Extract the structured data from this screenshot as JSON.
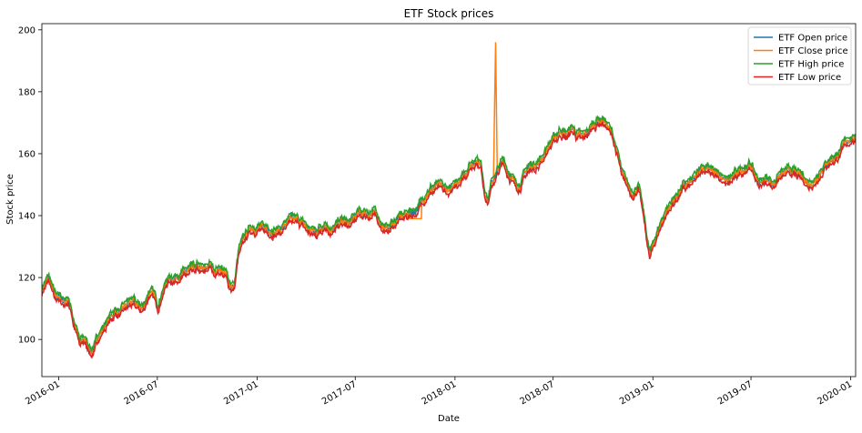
{
  "chart_data": {
    "type": "line",
    "title": "ETF Stock prices",
    "xlabel": "Date",
    "ylabel": "Stock price",
    "x_range": [
      "2015-12-01",
      "2020-01-10"
    ],
    "ylim": [
      88,
      202
    ],
    "x_ticks": [
      {
        "date": "2016-01-01",
        "label": "2016-01"
      },
      {
        "date": "2016-07-01",
        "label": "2016-07"
      },
      {
        "date": "2017-01-01",
        "label": "2017-01"
      },
      {
        "date": "2017-07-01",
        "label": "2017-07"
      },
      {
        "date": "2018-01-01",
        "label": "2018-01"
      },
      {
        "date": "2018-07-01",
        "label": "2018-07"
      },
      {
        "date": "2019-01-01",
        "label": "2019-01"
      },
      {
        "date": "2019-07-01",
        "label": "2019-07"
      },
      {
        "date": "2020-01-01",
        "label": "2020-01"
      }
    ],
    "y_ticks": [
      100,
      120,
      140,
      160,
      180,
      200
    ],
    "grid": false,
    "legend_position": "top-right",
    "series": [
      {
        "name": "ETF Open price",
        "color": "#1f77b4"
      },
      {
        "name": "ETF Close price",
        "color": "#ff7f0e"
      },
      {
        "name": "ETF High price",
        "color": "#2ca02c"
      },
      {
        "name": "ETF Low price",
        "color": "#d62728"
      }
    ],
    "base_path": [
      [
        "2015-12-01",
        116
      ],
      [
        "2015-12-08",
        118.5
      ],
      [
        "2015-12-14",
        119.5
      ],
      [
        "2015-12-21",
        116
      ],
      [
        "2015-12-28",
        112.5
      ],
      [
        "2016-01-04",
        113.5
      ],
      [
        "2016-01-11",
        111.5
      ],
      [
        "2016-01-19",
        113
      ],
      [
        "2016-01-27",
        107
      ],
      [
        "2016-02-03",
        103
      ],
      [
        "2016-02-09",
        98.5
      ],
      [
        "2016-02-17",
        100
      ],
      [
        "2016-02-24",
        98
      ],
      [
        "2016-03-01",
        96
      ],
      [
        "2016-03-07",
        97
      ],
      [
        "2016-03-15",
        101.5
      ],
      [
        "2016-03-25",
        104
      ],
      [
        "2016-04-05",
        107
      ],
      [
        "2016-04-15",
        109
      ],
      [
        "2016-04-25",
        108.5
      ],
      [
        "2016-05-05",
        111
      ],
      [
        "2016-05-15",
        112
      ],
      [
        "2016-05-25",
        110.5
      ],
      [
        "2016-06-05",
        110
      ],
      [
        "2016-06-15",
        115
      ],
      [
        "2016-06-25",
        114
      ],
      [
        "2016-07-02",
        110.5
      ],
      [
        "2016-07-10",
        115
      ],
      [
        "2016-07-20",
        119
      ],
      [
        "2016-08-01",
        120
      ],
      [
        "2016-08-15",
        121
      ],
      [
        "2016-09-01",
        122
      ],
      [
        "2016-09-15",
        123
      ],
      [
        "2016-09-25",
        122
      ],
      [
        "2016-10-05",
        124
      ],
      [
        "2016-10-15",
        122
      ],
      [
        "2016-10-25",
        123
      ],
      [
        "2016-11-05",
        120.5
      ],
      [
        "2016-11-10",
        118
      ],
      [
        "2016-11-20",
        117
      ],
      [
        "2016-11-28",
        128
      ],
      [
        "2016-12-10",
        133
      ],
      [
        "2016-12-20",
        136
      ],
      [
        "2017-01-01",
        136
      ],
      [
        "2017-01-20",
        135.5
      ],
      [
        "2017-02-10",
        135
      ],
      [
        "2017-03-01",
        138
      ],
      [
        "2017-03-20",
        138.5
      ],
      [
        "2017-04-05",
        135.5
      ],
      [
        "2017-04-20",
        134.5
      ],
      [
        "2017-05-05",
        137.5
      ],
      [
        "2017-05-20",
        135
      ],
      [
        "2017-06-05",
        138
      ],
      [
        "2017-06-20",
        137
      ],
      [
        "2017-07-05",
        140
      ],
      [
        "2017-07-20",
        141
      ],
      [
        "2017-08-05",
        140.5
      ],
      [
        "2017-08-20",
        137
      ],
      [
        "2017-08-28",
        135.5
      ],
      [
        "2017-09-10",
        137.5
      ],
      [
        "2017-09-20",
        139
      ],
      [
        "2017-10-05",
        140.5
      ],
      [
        "2017-10-20",
        141.5
      ],
      [
        "2017-11-01",
        144
      ],
      [
        "2017-11-10",
        147.5
      ],
      [
        "2017-11-20",
        148.5
      ],
      [
        "2017-12-01",
        149.5
      ],
      [
        "2017-12-15",
        148
      ],
      [
        "2017-12-28",
        148.5
      ],
      [
        "2018-01-05",
        151
      ],
      [
        "2018-01-15",
        153
      ],
      [
        "2018-01-25",
        155
      ],
      [
        "2018-02-03",
        157
      ],
      [
        "2018-02-10",
        158.5
      ],
      [
        "2018-02-18",
        156
      ],
      [
        "2018-02-25",
        148
      ],
      [
        "2018-03-03",
        145
      ],
      [
        "2018-03-10",
        150.5
      ],
      [
        "2018-03-18",
        153
      ],
      [
        "2018-03-26",
        156
      ],
      [
        "2018-04-01",
        157.5
      ],
      [
        "2018-04-08",
        154
      ],
      [
        "2018-04-15",
        152.5
      ],
      [
        "2018-04-22",
        150
      ],
      [
        "2018-04-30",
        149.5
      ],
      [
        "2018-05-08",
        152.5
      ],
      [
        "2018-05-15",
        155
      ],
      [
        "2018-05-25",
        156
      ],
      [
        "2018-06-05",
        157
      ],
      [
        "2018-06-15",
        160
      ],
      [
        "2018-06-25",
        163
      ],
      [
        "2018-07-05",
        165
      ],
      [
        "2018-07-15",
        167.5
      ],
      [
        "2018-07-25",
        166
      ],
      [
        "2018-08-05",
        168
      ],
      [
        "2018-08-15",
        166
      ],
      [
        "2018-08-25",
        165
      ],
      [
        "2018-09-01",
        166.5
      ],
      [
        "2018-09-10",
        168.5
      ],
      [
        "2018-09-20",
        170.5
      ],
      [
        "2018-10-01",
        171
      ],
      [
        "2018-10-10",
        169
      ],
      [
        "2018-10-20",
        165
      ],
      [
        "2018-10-28",
        160
      ],
      [
        "2018-11-05",
        153
      ],
      [
        "2018-11-12",
        150.5
      ],
      [
        "2018-11-20",
        148
      ],
      [
        "2018-11-28",
        147.5
      ],
      [
        "2018-12-05",
        150
      ],
      [
        "2018-12-12",
        143
      ],
      [
        "2018-12-19",
        135
      ],
      [
        "2018-12-26",
        127
      ],
      [
        "2019-01-05",
        132
      ],
      [
        "2019-01-15",
        137
      ],
      [
        "2019-01-25",
        141
      ],
      [
        "2019-02-05",
        144
      ],
      [
        "2019-02-15",
        146.5
      ],
      [
        "2019-02-25",
        149
      ],
      [
        "2019-03-08",
        150
      ],
      [
        "2019-03-18",
        151.5
      ],
      [
        "2019-03-25",
        153
      ],
      [
        "2019-04-05",
        155.5
      ],
      [
        "2019-04-15",
        156
      ],
      [
        "2019-04-25",
        153.5
      ],
      [
        "2019-05-05",
        152.5
      ],
      [
        "2019-05-15",
        150.5
      ],
      [
        "2019-05-28",
        152
      ],
      [
        "2019-06-10",
        154.5
      ],
      [
        "2019-06-20",
        155.5
      ],
      [
        "2019-07-01",
        156
      ],
      [
        "2019-07-10",
        152
      ],
      [
        "2019-07-20",
        150.5
      ],
      [
        "2019-08-01",
        152
      ],
      [
        "2019-08-10",
        150
      ],
      [
        "2019-08-20",
        152.5
      ],
      [
        "2019-09-01",
        153.5
      ],
      [
        "2019-09-15",
        154.5
      ],
      [
        "2019-09-25",
        153
      ],
      [
        "2019-10-05",
        152
      ],
      [
        "2019-10-15",
        150.5
      ],
      [
        "2019-10-25",
        151
      ],
      [
        "2019-11-05",
        154
      ],
      [
        "2019-11-15",
        156.5
      ],
      [
        "2019-11-25",
        158
      ],
      [
        "2019-12-05",
        159
      ],
      [
        "2019-12-15",
        161
      ],
      [
        "2019-12-22",
        163
      ],
      [
        "2019-12-30",
        165
      ],
      [
        "2020-01-05",
        165.5
      ],
      [
        "2020-01-10",
        164
      ]
    ],
    "high_low_spread": 1.2,
    "close_annotations": [
      {
        "type": "flat",
        "from": "2017-10-10",
        "to": "2017-10-31",
        "value": 139
      },
      {
        "type": "spike",
        "from": "2018-03-13",
        "peak": "2018-03-17",
        "to": "2018-03-20",
        "value": 196
      }
    ]
  }
}
